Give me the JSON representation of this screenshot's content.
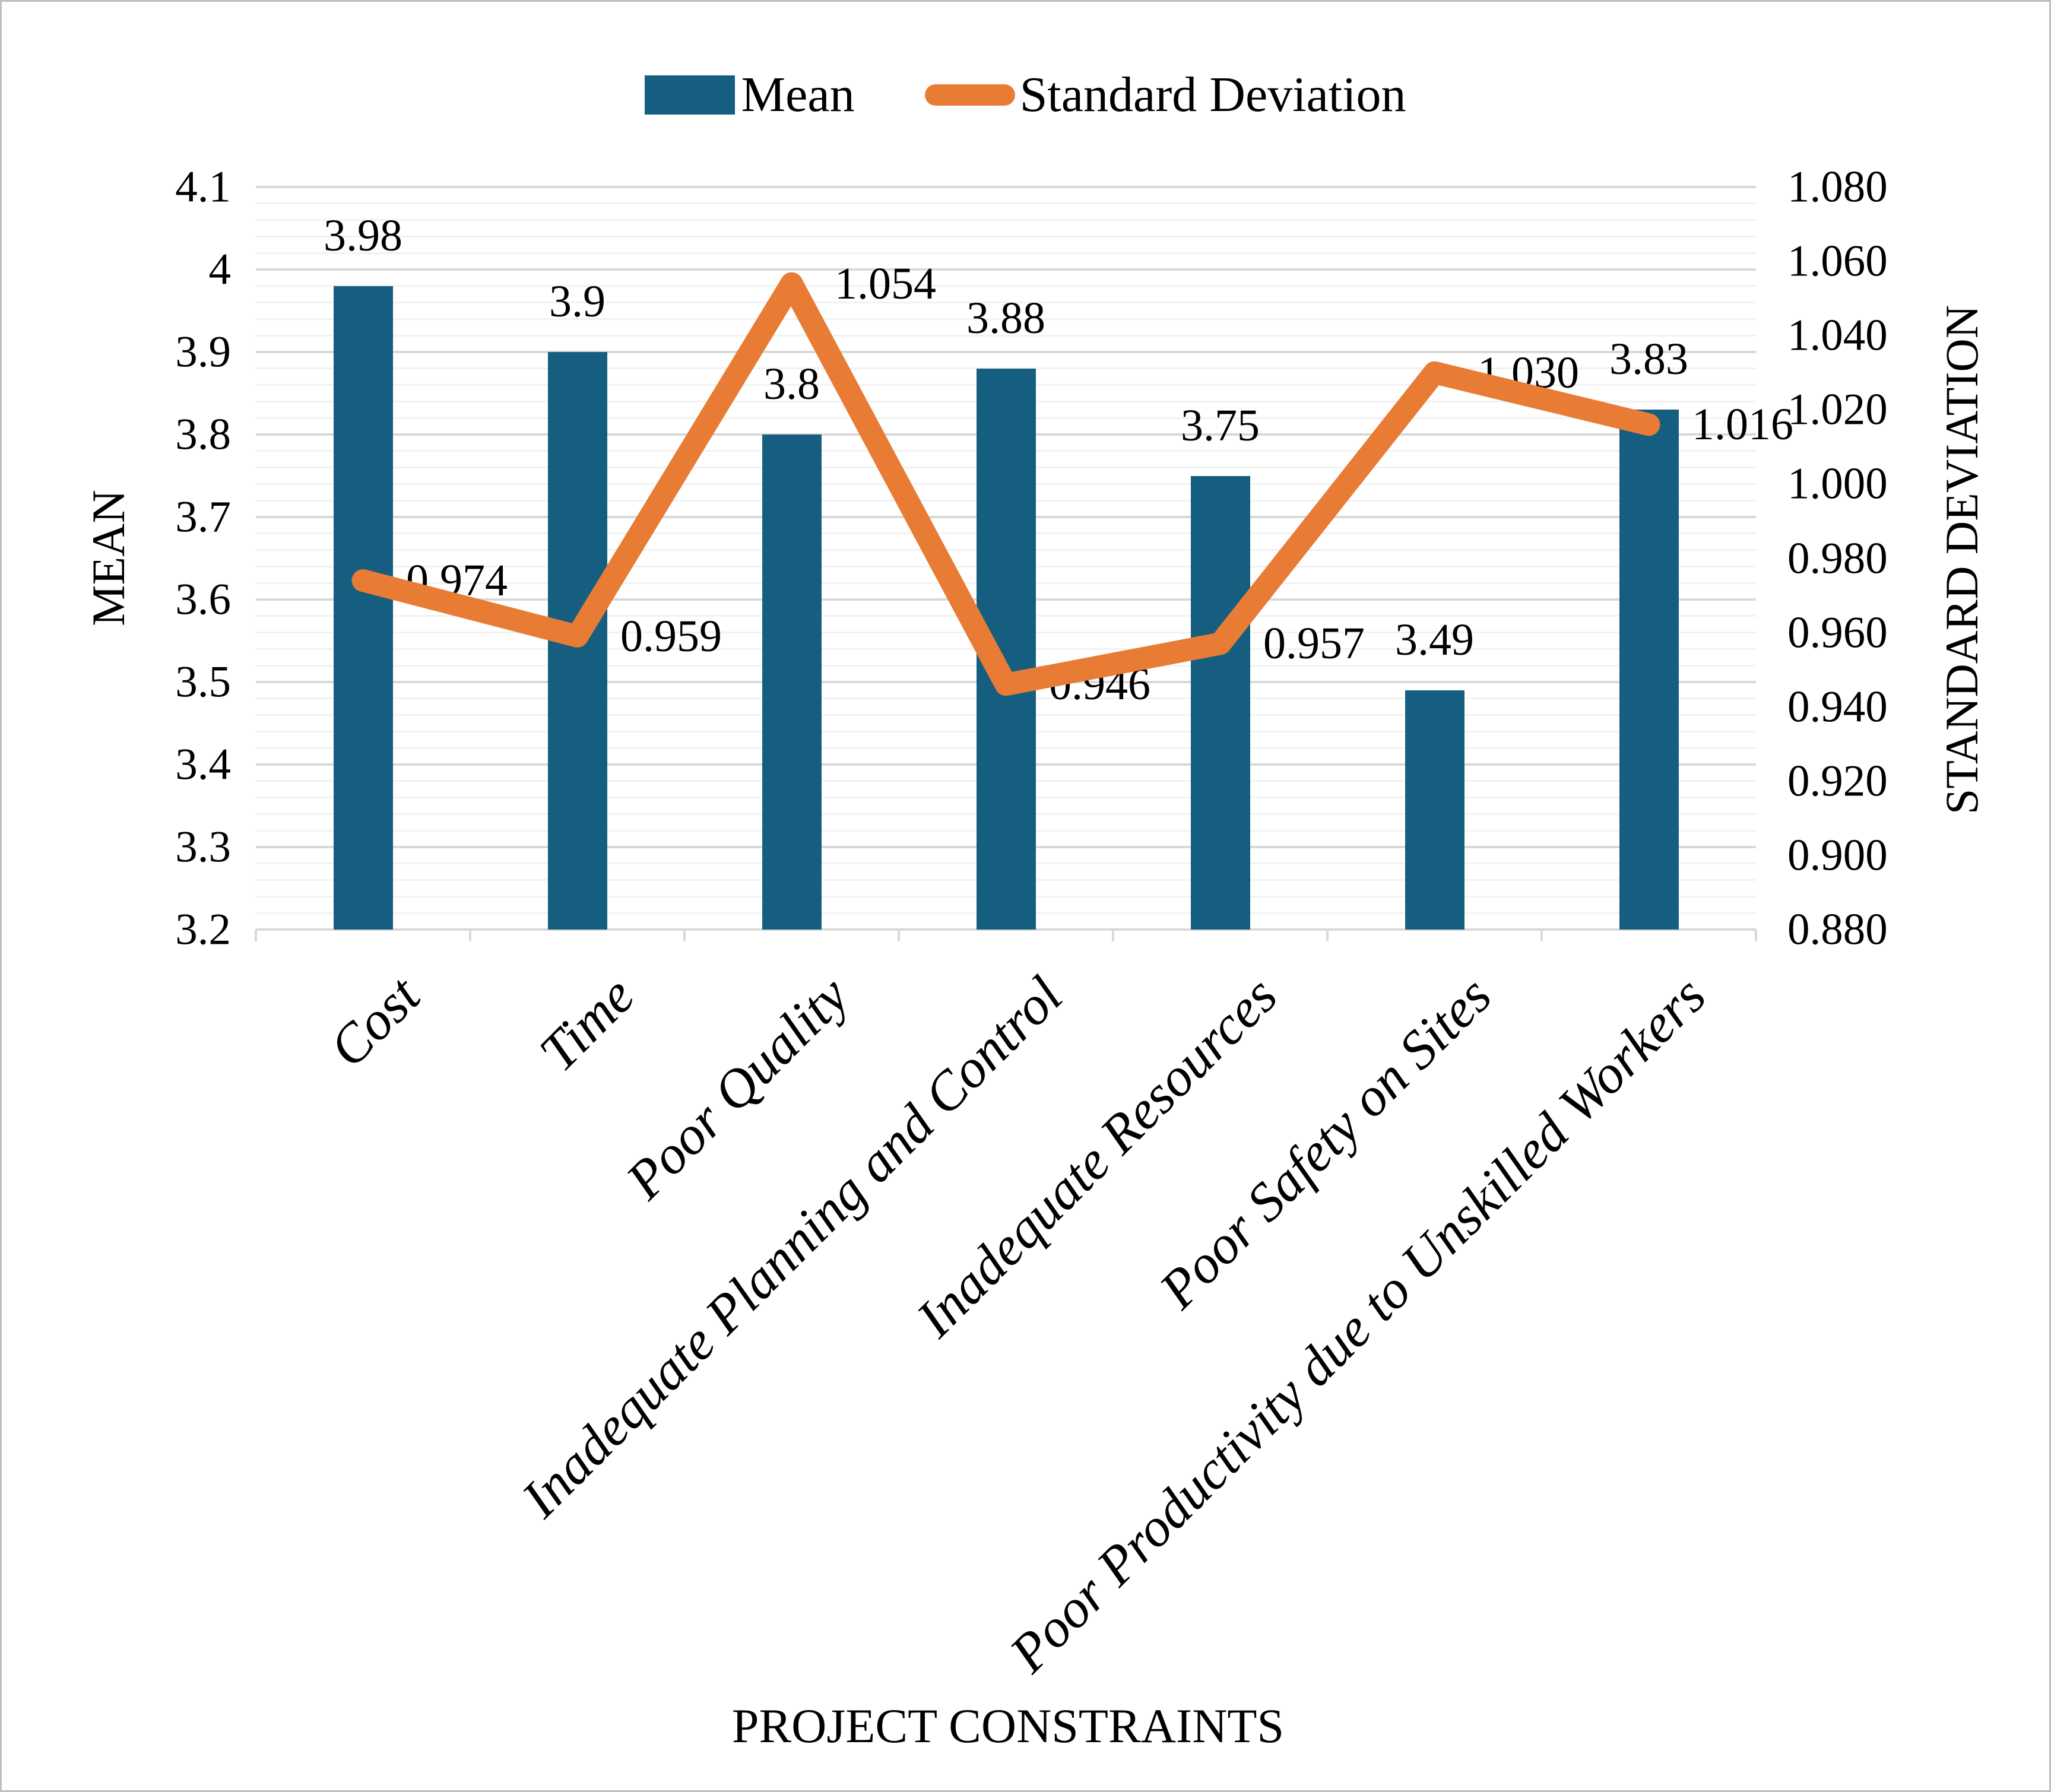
{
  "chart_data": {
    "type": "combo-bar-line",
    "title": "",
    "categories": [
      "Cost",
      "Time",
      "Poor Quality",
      "Inadequate Planning and Control",
      "Inadequate Resources",
      "Poor Safety on Sites",
      "Poor Productivity due to Unskilled Workers"
    ],
    "series": [
      {
        "name": "Mean",
        "type": "bar",
        "axis": "left",
        "color": "#165E80",
        "values": [
          3.98,
          3.9,
          3.8,
          3.88,
          3.75,
          3.49,
          3.83
        ],
        "labels": [
          "3.98",
          "3.9",
          "3.8",
          "3.88",
          "3.75",
          "3.49",
          "3.83"
        ]
      },
      {
        "name": "Standard Deviation",
        "type": "line",
        "axis": "right",
        "color": "#E87C35",
        "values": [
          0.974,
          0.959,
          1.054,
          0.946,
          0.957,
          1.03,
          1.016
        ],
        "labels": [
          "0.974",
          "0.959",
          "1.054",
          "0.946",
          "0.957",
          "1.030",
          "1.016"
        ]
      }
    ],
    "left_axis": {
      "title": "MEAN",
      "min": 3.2,
      "max": 4.1,
      "tick_step": 0.1,
      "minor_step": 0.02,
      "tick_labels": [
        "3.2",
        "3.3",
        "3.4",
        "3.5",
        "3.6",
        "3.7",
        "3.8",
        "3.9",
        "4",
        "4.1"
      ]
    },
    "right_axis": {
      "title": "STANDARD DEVIATION",
      "min": 0.88,
      "max": 1.08,
      "tick_step": 0.02,
      "tick_labels": [
        "0.880",
        "0.900",
        "0.920",
        "0.940",
        "0.960",
        "0.980",
        "1.000",
        "1.020",
        "1.040",
        "1.060",
        "1.080"
      ]
    },
    "x_axis": {
      "title": "PROJECT CONSTRAINTS"
    },
    "legend": [
      "Mean",
      "Standard Deviation"
    ],
    "grid": {
      "major_color": "#D9D9D9",
      "minor_color": "#F2F2F2",
      "on": true
    },
    "layout_hint": {
      "legend_position": "top-center",
      "bars_start_at_axis_min": true
    }
  }
}
